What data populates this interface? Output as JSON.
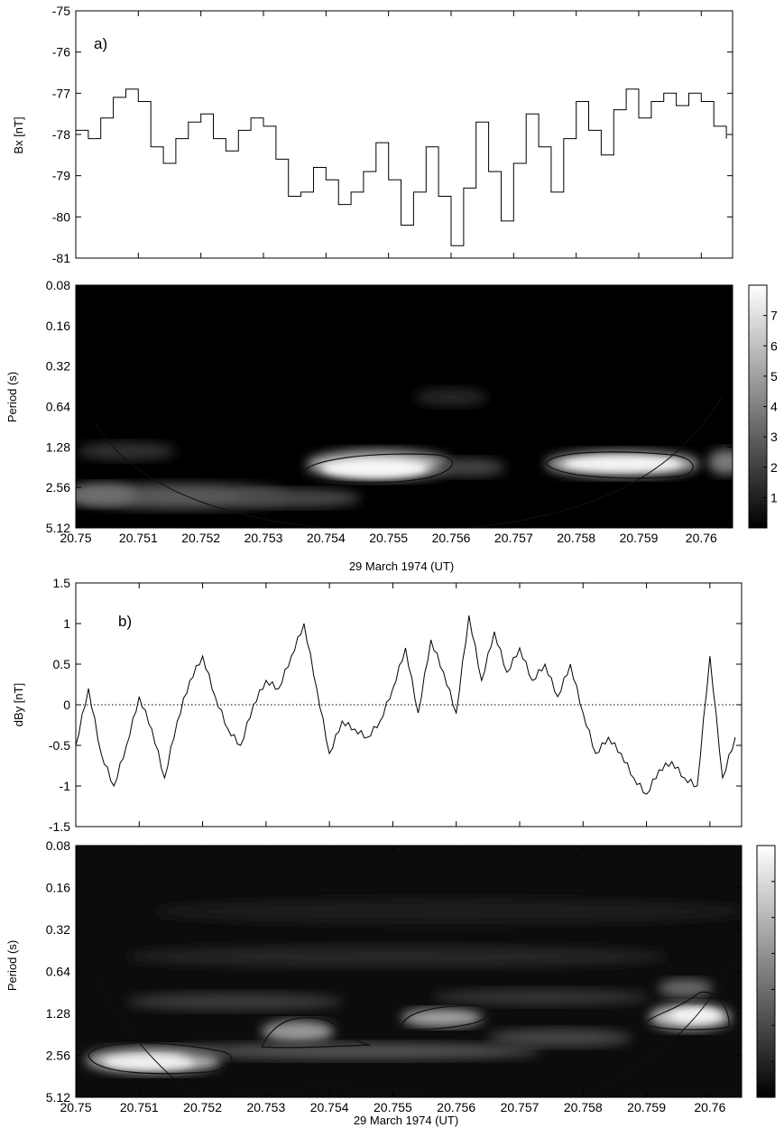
{
  "chart_data": [
    {
      "type": "line",
      "panel_label": "a)",
      "xlabel": "",
      "ylabel": "Bx [nT]",
      "xlim": [
        20.75,
        20.7605
      ],
      "ylim": [
        -81,
        -75
      ],
      "yticks": [
        "-75",
        "-76",
        "-77",
        "-78",
        "-79",
        "-80",
        "-81"
      ],
      "series": [
        {
          "x": [
            20.75,
            20.7502,
            20.7504,
            20.7506,
            20.7508,
            20.751,
            20.7512,
            20.7514,
            20.7516,
            20.7518,
            20.752,
            20.7522,
            20.7524,
            20.7526,
            20.7528,
            20.753,
            20.7532,
            20.7534,
            20.7536,
            20.7538,
            20.754,
            20.7542,
            20.7544,
            20.7546,
            20.7548,
            20.755,
            20.7552,
            20.7554,
            20.7556,
            20.7558,
            20.756,
            20.7562,
            20.7564,
            20.7566,
            20.7568,
            20.757,
            20.7572,
            20.7574,
            20.7576,
            20.7578,
            20.758,
            20.7582,
            20.7584,
            20.7586,
            20.7588,
            20.759,
            20.7592,
            20.7594,
            20.7596,
            20.7598,
            20.76,
            20.7602,
            20.7604
          ],
          "y": [
            -77.9,
            -78.1,
            -77.6,
            -77.1,
            -76.9,
            -77.2,
            -78.3,
            -78.7,
            -78.1,
            -77.7,
            -77.5,
            -78.1,
            -78.4,
            -77.9,
            -77.6,
            -77.8,
            -78.6,
            -79.5,
            -79.4,
            -78.8,
            -79.1,
            -79.7,
            -79.4,
            -78.9,
            -78.2,
            -79.1,
            -80.2,
            -79.4,
            -78.3,
            -79.5,
            -80.7,
            -79.3,
            -77.7,
            -78.9,
            -80.1,
            -78.7,
            -77.5,
            -78.3,
            -79.4,
            -78.1,
            -77.2,
            -77.9,
            -78.5,
            -77.4,
            -76.9,
            -77.6,
            -77.2,
            -77.0,
            -77.3,
            -77.0,
            -77.2,
            -77.8,
            -78.1
          ]
        }
      ]
    },
    {
      "type": "heatmap",
      "xlabel": "29 March 1974 (UT)",
      "ylabel": "Period (s)",
      "xlim": [
        20.75,
        20.7605
      ],
      "xticks": [
        "20.75",
        "20.751",
        "20.752",
        "20.753",
        "20.754",
        "20.755",
        "20.756",
        "20.757",
        "20.758",
        "20.759",
        "20.76"
      ],
      "yticks": [
        "0.08",
        "0.16",
        "0.32",
        "0.64",
        "1.28",
        "2.56",
        "5.12"
      ],
      "yscale": "log2",
      "colorbar_ticks": [
        "1",
        "2",
        "3",
        "4",
        "5",
        "6",
        "7"
      ],
      "colormap": "gray",
      "power_peaks": [
        {
          "x": 20.7549,
          "period": 1.9,
          "value": 7.2
        },
        {
          "x": 20.7586,
          "period": 1.75,
          "value": 6.8
        },
        {
          "x": 20.7512,
          "period": 3.1,
          "value": 3.0
        },
        {
          "x": 20.7604,
          "period": 1.9,
          "value": 3.5
        }
      ]
    },
    {
      "type": "line",
      "panel_label": "b)",
      "xlabel": "",
      "ylabel": "dBy [nT]",
      "xlim": [
        20.75,
        20.7605
      ],
      "ylim": [
        -1.5,
        1.5
      ],
      "yticks": [
        "1.5",
        "1",
        "0.5",
        "0",
        "-0.5",
        "-1",
        "-1.5"
      ],
      "zero_line": "dotted",
      "series": [
        {
          "x": [
            20.75,
            20.7502,
            20.7504,
            20.7506,
            20.7508,
            20.751,
            20.7512,
            20.7514,
            20.7516,
            20.7518,
            20.752,
            20.7522,
            20.7524,
            20.7526,
            20.7528,
            20.753,
            20.7532,
            20.7534,
            20.7536,
            20.7538,
            20.754,
            20.7542,
            20.7544,
            20.7546,
            20.7548,
            20.755,
            20.7552,
            20.7554,
            20.7556,
            20.7558,
            20.756,
            20.7562,
            20.7564,
            20.7566,
            20.7568,
            20.757,
            20.7572,
            20.7574,
            20.7576,
            20.7578,
            20.758,
            20.7582,
            20.7584,
            20.7586,
            20.7588,
            20.759,
            20.7592,
            20.7594,
            20.7596,
            20.7598,
            20.76,
            20.7602,
            20.7604
          ],
          "y": [
            -0.5,
            0.2,
            -0.6,
            -1.0,
            -0.5,
            0.1,
            -0.3,
            -0.9,
            -0.2,
            0.3,
            0.6,
            0.1,
            -0.3,
            -0.5,
            0.0,
            0.3,
            0.2,
            0.6,
            1.0,
            0.2,
            -0.6,
            -0.2,
            -0.3,
            -0.4,
            -0.2,
            0.2,
            0.7,
            -0.1,
            0.8,
            0.4,
            -0.1,
            1.1,
            0.3,
            0.9,
            0.4,
            0.7,
            0.3,
            0.5,
            0.1,
            0.5,
            -0.1,
            -0.6,
            -0.4,
            -0.6,
            -0.9,
            -1.1,
            -0.8,
            -0.7,
            -0.9,
            -1.0,
            0.6,
            -0.9,
            -0.4
          ]
        }
      ]
    },
    {
      "type": "heatmap",
      "xlabel": "29 March 1974 (UT)",
      "ylabel": "Period (s)",
      "xlim": [
        20.75,
        20.7605
      ],
      "xticks": [
        "20.75",
        "20.751",
        "20.752",
        "20.753",
        "20.754",
        "20.755",
        "20.756",
        "20.757",
        "20.758",
        "20.759",
        "20.76"
      ],
      "yticks": [
        "0.08",
        "0.16",
        "0.32",
        "0.64",
        "1.28",
        "2.56",
        "5.12"
      ],
      "yscale": "log2",
      "colorbar_ticks": [
        "",
        "",
        "",
        "",
        "",
        ""
      ],
      "colormap": "gray",
      "power_peaks": [
        {
          "x": 20.7511,
          "period": 3.3,
          "value": 6.0
        },
        {
          "x": 20.7534,
          "period": 2.2,
          "value": 4.0
        },
        {
          "x": 20.7558,
          "period": 1.7,
          "value": 4.5
        },
        {
          "x": 20.7599,
          "period": 1.75,
          "value": 6.5
        },
        {
          "x": 20.7594,
          "period": 1.05,
          "value": 3.0
        }
      ]
    }
  ]
}
